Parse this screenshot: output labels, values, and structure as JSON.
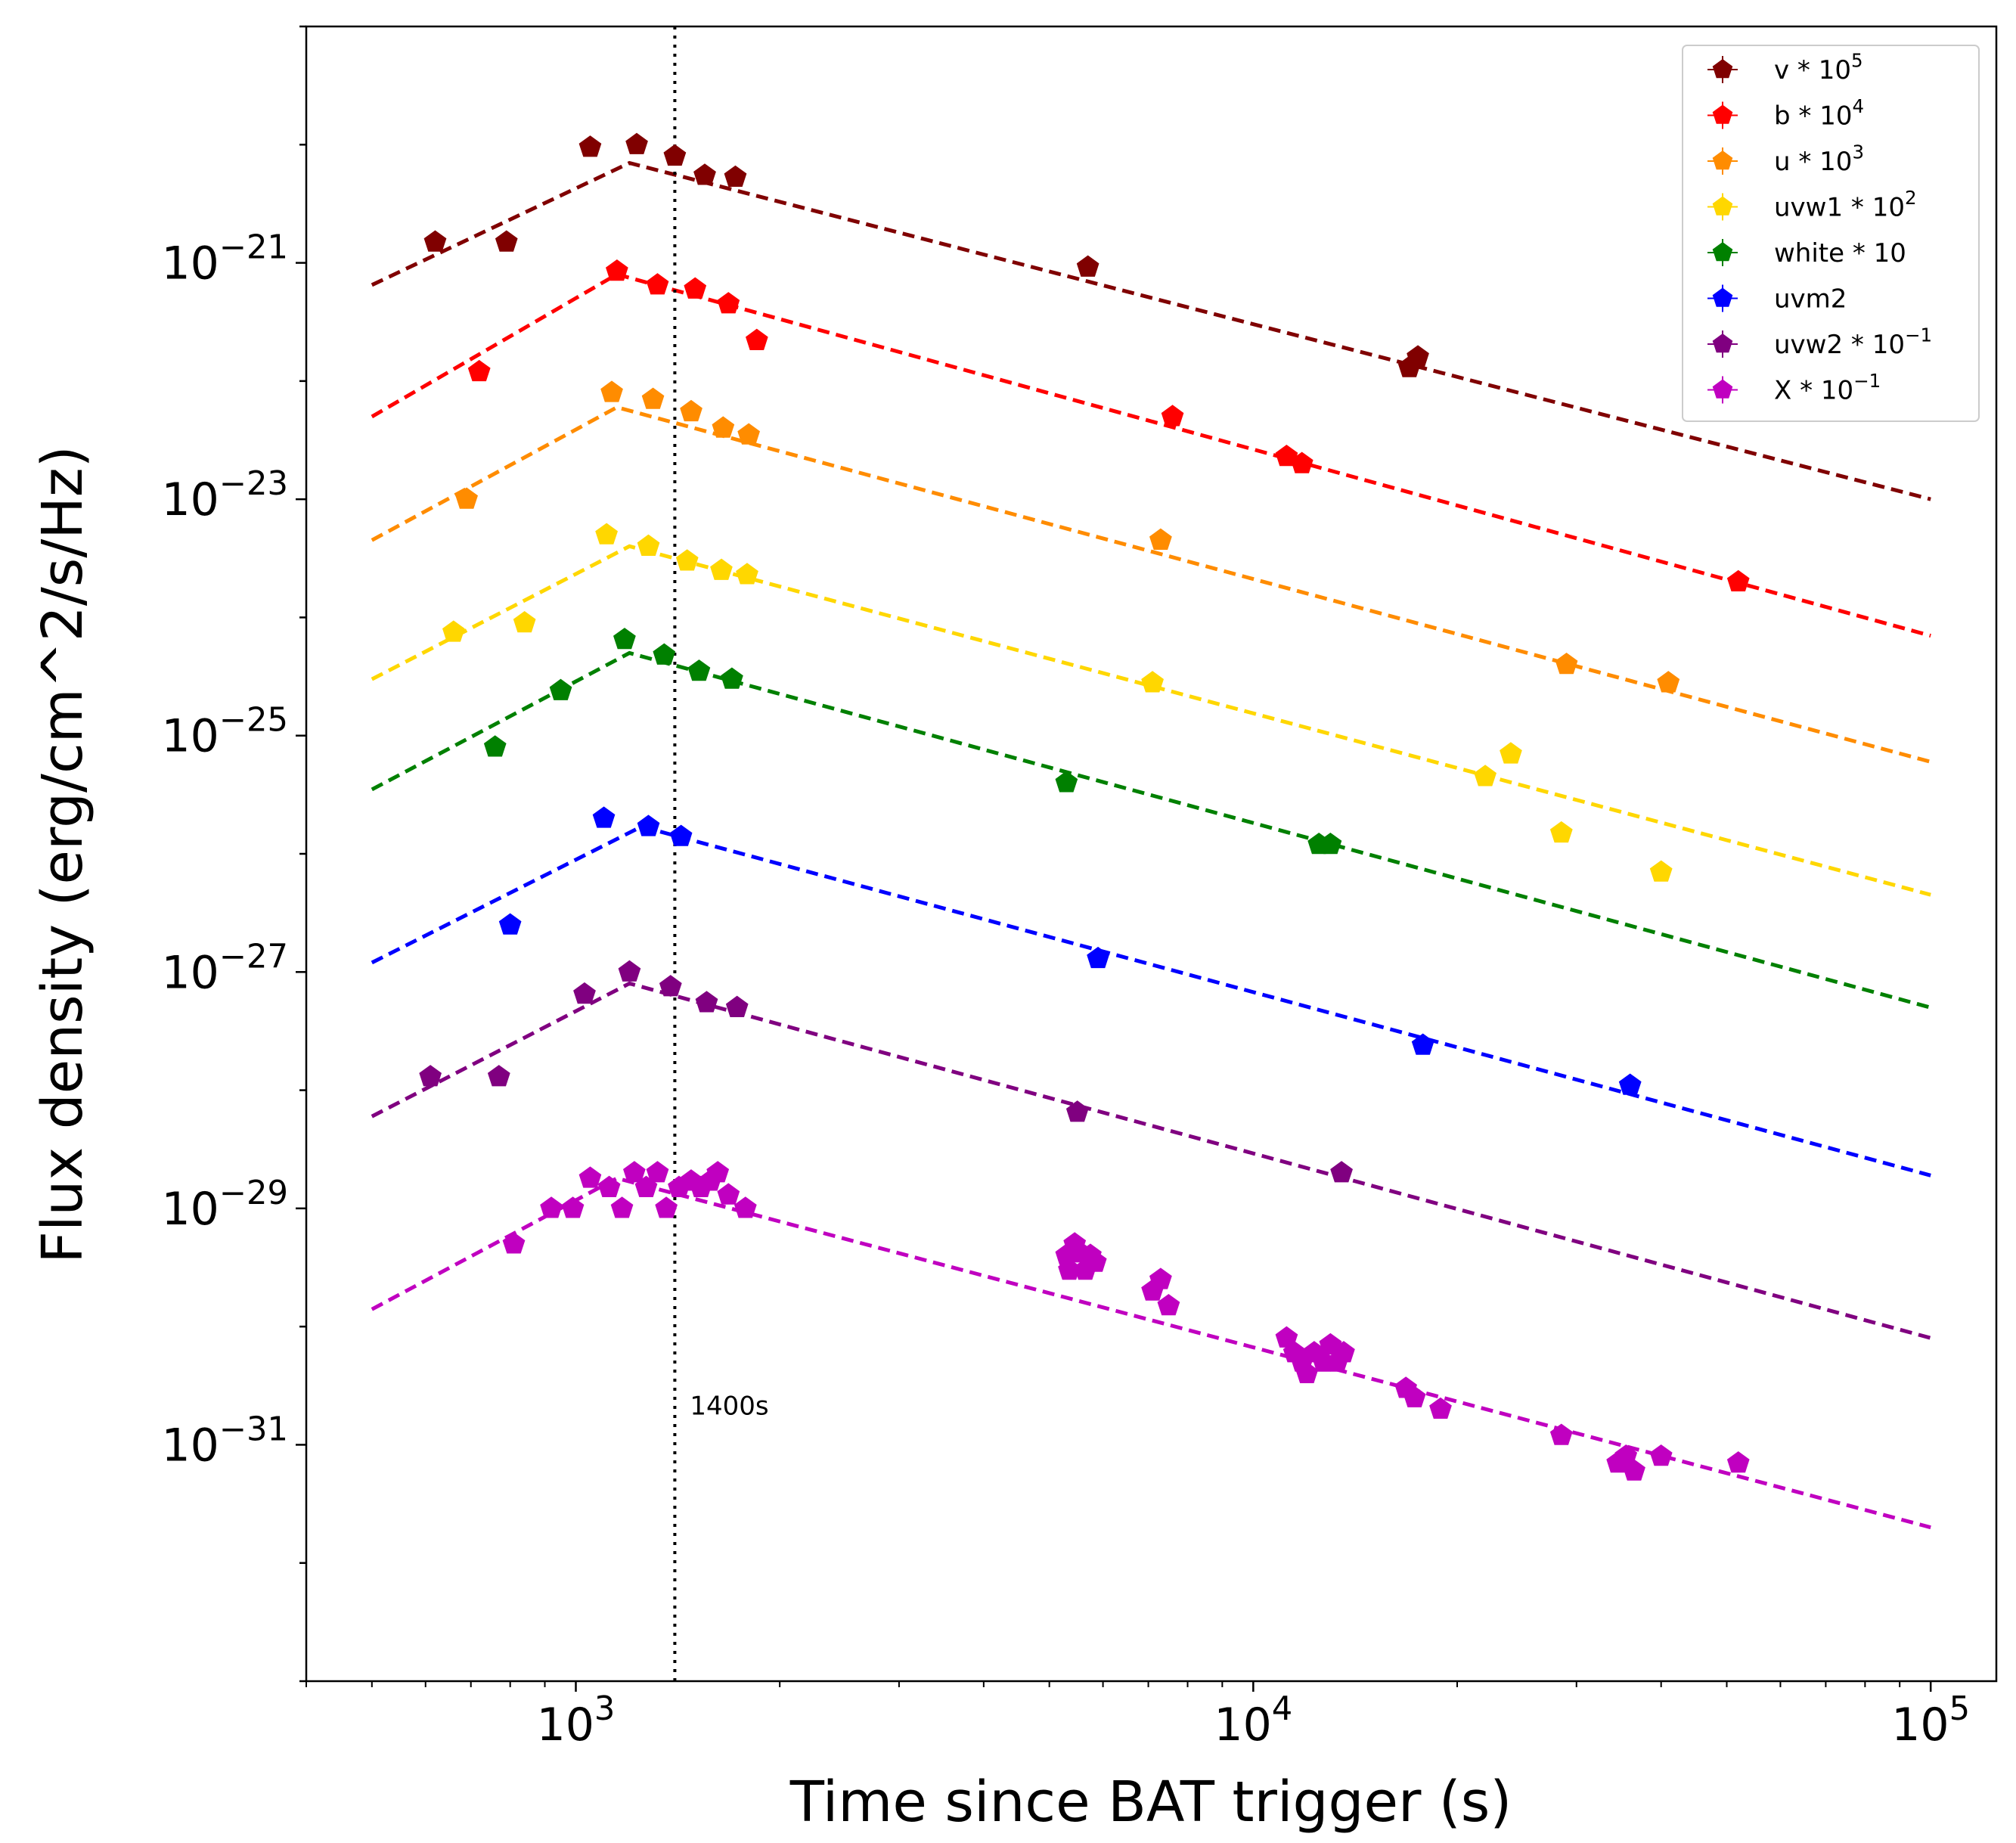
{
  "chart_data": {
    "type": "scatter",
    "xscale": "log",
    "yscale": "log",
    "xlim": [
      400,
      125000
    ],
    "ylim": [
      1e-33,
      1e-19
    ],
    "xlabel": "Time since BAT trigger (s)",
    "ylabel": "Flux density (erg/cm^2/s/Hz)",
    "x_ticks": [
      {
        "value": 1000,
        "base": "10",
        "exp": "3"
      },
      {
        "value": 10000,
        "base": "10",
        "exp": "4"
      },
      {
        "value": 100000,
        "base": "10",
        "exp": "5"
      }
    ],
    "y_ticks": [
      {
        "value": 1e-21,
        "base": "10",
        "exp": "−21"
      },
      {
        "value": 1e-23,
        "base": "10",
        "exp": "−23"
      },
      {
        "value": 1e-25,
        "base": "10",
        "exp": "−25"
      },
      {
        "value": 1e-27,
        "base": "10",
        "exp": "−27"
      },
      {
        "value": 1e-29,
        "base": "10",
        "exp": "−29"
      },
      {
        "value": 1e-31,
        "base": "10",
        "exp": "−31"
      }
    ],
    "vline": {
      "x": 1400,
      "label": "1400s"
    },
    "legend_position": "top-right",
    "series": [
      {
        "name": "v",
        "legend_text": "v * 10",
        "legend_exp": "5",
        "color": "#800000",
        "model": {
          "t_break": 1200,
          "f_break": 7e-21,
          "t_start": 500,
          "f_start": 6.5e-22,
          "t_end": 100000,
          "f_end": 1e-23
        },
        "points": [
          [
            620,
            1.5e-21
          ],
          [
            790,
            1.5e-21
          ],
          [
            1050,
            9.5e-21
          ],
          [
            1230,
            1e-20
          ],
          [
            1400,
            8e-21
          ],
          [
            1550,
            5.5e-21
          ],
          [
            1720,
            5.3e-21
          ],
          [
            5700,
            9.2e-22
          ],
          [
            17000,
            1.3e-22
          ],
          [
            17500,
            1.6e-22
          ]
        ]
      },
      {
        "name": "b",
        "legend_text": "b * 10",
        "legend_exp": "4",
        "color": "#ff0000",
        "model": {
          "t_break": 1150,
          "f_break": 8e-22,
          "t_start": 500,
          "f_start": 5e-23,
          "t_end": 100000,
          "f_end": 7e-25
        },
        "points": [
          [
            720,
            1.2e-22
          ],
          [
            1150,
            8.5e-22
          ],
          [
            1320,
            6.5e-22
          ],
          [
            1500,
            6e-22
          ],
          [
            1680,
            4.5e-22
          ],
          [
            1850,
            2.2e-22
          ],
          [
            7600,
            5e-23
          ],
          [
            11200,
            2.3e-23
          ],
          [
            11800,
            2e-23
          ],
          [
            52000,
            2e-24
          ]
        ]
      },
      {
        "name": "u",
        "legend_text": "u * 10",
        "legend_exp": "3",
        "color": "#ff8c00",
        "model": {
          "t_break": 1150,
          "f_break": 6e-23,
          "t_start": 500,
          "f_start": 4.5e-24,
          "t_end": 100000,
          "f_end": 6e-26
        },
        "points": [
          [
            690,
            1e-23
          ],
          [
            1130,
            8e-23
          ],
          [
            1300,
            7e-23
          ],
          [
            1480,
            5.5e-23
          ],
          [
            1650,
            4e-23
          ],
          [
            1800,
            3.5e-23
          ],
          [
            7300,
            4.5e-24
          ],
          [
            29000,
            4e-25
          ],
          [
            41000,
            2.8e-25
          ]
        ]
      },
      {
        "name": "uvw1",
        "legend_text": "uvw1 * 10",
        "legend_exp": "2",
        "color": "#ffd700",
        "model": {
          "t_break": 1200,
          "f_break": 4e-24,
          "t_start": 500,
          "f_start": 3e-25,
          "t_end": 100000,
          "f_end": 4.5e-27
        },
        "points": [
          [
            660,
            7.5e-25
          ],
          [
            840,
            9e-25
          ],
          [
            1110,
            5e-24
          ],
          [
            1280,
            4e-24
          ],
          [
            1460,
            3e-24
          ],
          [
            1640,
            2.5e-24
          ],
          [
            1790,
            2.3e-24
          ],
          [
            7100,
            2.8e-25
          ],
          [
            22000,
            4.5e-26
          ],
          [
            24000,
            7e-26
          ],
          [
            28500,
            1.5e-26
          ],
          [
            40000,
            7e-27
          ]
        ]
      },
      {
        "name": "white",
        "legend_text": "white * 10",
        "legend_exp": "",
        "color": "#008000",
        "model": {
          "t_break": 1200,
          "f_break": 5e-25,
          "t_start": 500,
          "f_start": 3.5e-26,
          "t_end": 100000,
          "f_end": 5e-28
        },
        "points": [
          [
            760,
            8e-26
          ],
          [
            950,
            2.4e-25
          ],
          [
            1180,
            6.5e-25
          ],
          [
            1350,
            4.8e-25
          ],
          [
            1520,
            3.5e-25
          ],
          [
            1700,
            3e-25
          ],
          [
            5300,
            4e-26
          ],
          [
            12500,
            1.2e-26
          ],
          [
            13000,
            1.2e-26
          ]
        ]
      },
      {
        "name": "uvm2",
        "legend_text": "uvm2",
        "legend_exp": "",
        "color": "#0000ff",
        "model": {
          "t_break": 1250,
          "f_break": 1.7e-26,
          "t_start": 500,
          "f_start": 1.2e-27,
          "t_end": 100000,
          "f_end": 1.9e-29
        },
        "points": [
          [
            800,
            2.5e-27
          ],
          [
            1100,
            2e-26
          ],
          [
            1280,
            1.7e-26
          ],
          [
            1430,
            1.4e-26
          ],
          [
            5900,
            1.3e-27
          ],
          [
            17800,
            2.4e-28
          ],
          [
            36000,
            1.1e-28
          ]
        ]
      },
      {
        "name": "uvw2",
        "legend_text": "uvw2 * 10",
        "legend_exp": "−1",
        "color": "#800080",
        "model": {
          "t_break": 1200,
          "f_break": 8e-28,
          "t_start": 500,
          "f_start": 6e-29,
          "t_end": 100000,
          "f_end": 8e-31
        },
        "points": [
          [
            610,
            1.3e-28
          ],
          [
            770,
            1.3e-28
          ],
          [
            1030,
            6.5e-28
          ],
          [
            1200,
            1e-27
          ],
          [
            1380,
            7.5e-28
          ],
          [
            1560,
            5.5e-28
          ],
          [
            1730,
            5e-28
          ],
          [
            5500,
            6.5e-29
          ],
          [
            13500,
            2e-29
          ]
        ]
      },
      {
        "name": "X",
        "legend_text": "X * 10",
        "legend_exp": "−1",
        "color": "#c000c0",
        "model": {
          "t_break": 1150,
          "f_break": 1.8e-29,
          "t_start": 500,
          "f_start": 1.4e-30,
          "t_end": 100000,
          "f_end": 2e-32
        },
        "points": [
          [
            810,
            5e-30
          ],
          [
            920,
            1e-29
          ],
          [
            990,
            1e-29
          ],
          [
            1050,
            1.8e-29
          ],
          [
            1120,
            1.5e-29
          ],
          [
            1170,
            1e-29
          ],
          [
            1220,
            2e-29
          ],
          [
            1270,
            1.5e-29
          ],
          [
            1320,
            2e-29
          ],
          [
            1360,
            1e-29
          ],
          [
            1420,
            1.5e-29
          ],
          [
            1480,
            1.7e-29
          ],
          [
            1530,
            1.5e-29
          ],
          [
            1580,
            1.7e-29
          ],
          [
            1620,
            2e-29
          ],
          [
            1680,
            1.3e-29
          ],
          [
            1780,
            1e-29
          ],
          [
            5300,
            4e-30
          ],
          [
            5350,
            3e-30
          ],
          [
            5450,
            5e-30
          ],
          [
            5550,
            4.2e-30
          ],
          [
            5650,
            3e-30
          ],
          [
            5750,
            4e-30
          ],
          [
            5850,
            3.5e-30
          ],
          [
            7100,
            2e-30
          ],
          [
            7300,
            2.5e-30
          ],
          [
            7500,
            1.5e-30
          ],
          [
            11200,
            8e-31
          ],
          [
            11500,
            6e-31
          ],
          [
            11800,
            5e-31
          ],
          [
            12000,
            4e-31
          ],
          [
            12300,
            6e-31
          ],
          [
            12700,
            5e-31
          ],
          [
            13000,
            7e-31
          ],
          [
            13300,
            5e-31
          ],
          [
            13600,
            6e-31
          ],
          [
            16800,
            3e-31
          ],
          [
            17300,
            2.5e-31
          ],
          [
            18900,
            2e-31
          ],
          [
            28500,
            1.2e-31
          ],
          [
            34500,
            7e-32
          ],
          [
            35500,
            8e-32
          ],
          [
            36500,
            6e-32
          ],
          [
            40000,
            8e-32
          ],
          [
            52000,
            7e-32
          ]
        ]
      }
    ]
  }
}
